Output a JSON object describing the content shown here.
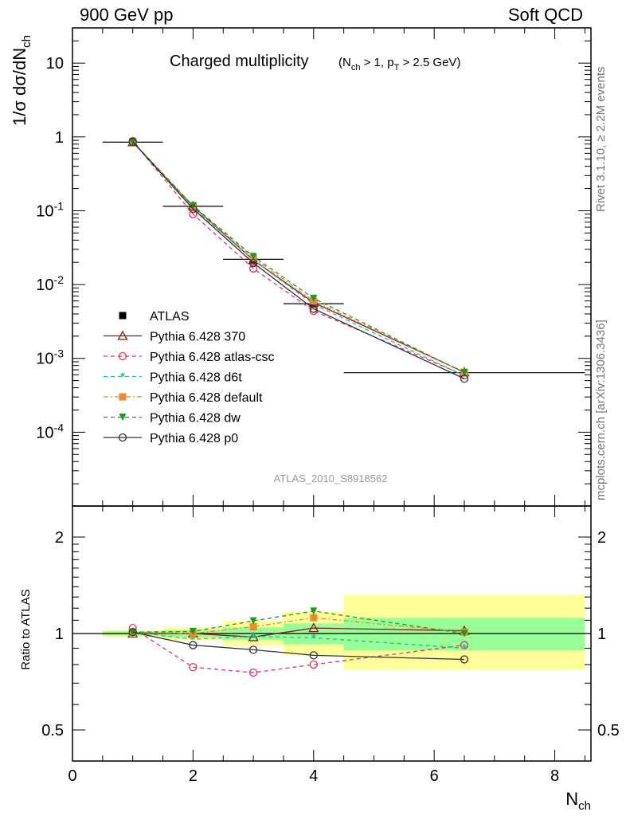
{
  "header": {
    "left": "900 GeV pp",
    "right": "Soft QCD"
  },
  "side_labels": {
    "rivet": "Rivet 3.1.10, ≥ 2.2M events",
    "mcplots": "mcplots.cern.ch [arXiv:1306.3436]"
  },
  "chart_data": [
    {
      "type": "line",
      "panel": "main",
      "title": "Charged multiplicity",
      "title_cuts": "(N_ch > 1, p_T > 2.5 GeV)",
      "ylabel": "1/σ dσ/dN_ch",
      "yscale": "log",
      "ylim": [
        1e-05,
        30
      ],
      "xlim": [
        0,
        8.6
      ],
      "watermark": "ATLAS_2010_S8918562",
      "legend_position": "left-center",
      "y_tick_labels": [
        "10",
        "1",
        "10^-1",
        "10^-2",
        "10^-3",
        "10^-4"
      ],
      "series": [
        {
          "name": "ATLAS",
          "color": "#000000",
          "marker": "square-filled",
          "x": [
            1,
            2,
            3,
            4,
            6.5
          ],
          "y": [
            0.85,
            0.115,
            0.022,
            0.0055,
            0.00064
          ],
          "bin_low": [
            0.5,
            1.5,
            2.5,
            3.5,
            4.5
          ],
          "bin_high": [
            1.5,
            2.5,
            3.5,
            4.5,
            8.5
          ]
        },
        {
          "name": "Pythia 6.428 370",
          "color": "#8b1a1a",
          "marker": "triangle-open",
          "dash": "solid",
          "x": [
            1,
            2,
            3,
            4,
            6.5
          ],
          "y": [
            0.85,
            0.115,
            0.0215,
            0.0057,
            0.00065
          ]
        },
        {
          "name": "Pythia 6.428 atlas-csc",
          "color": "#e8335a",
          "marker": "circle-open",
          "dash": "dashed",
          "x": [
            1,
            2,
            3,
            4,
            6.5
          ],
          "y": [
            0.88,
            0.09,
            0.0165,
            0.0044,
            0.00059
          ]
        },
        {
          "name": "Pythia 6.428 d6t",
          "color": "#1fbf9f",
          "marker": "star",
          "dash": "dashed",
          "x": [
            1,
            2,
            3,
            4,
            6.5
          ],
          "y": [
            0.86,
            0.11,
            0.0215,
            0.0054,
            0.00058
          ]
        },
        {
          "name": "Pythia 6.428 default",
          "color": "#f08a30",
          "marker": "square-filled",
          "dash": "dashdot",
          "x": [
            1,
            2,
            3,
            4,
            6.5
          ],
          "y": [
            0.86,
            0.115,
            0.023,
            0.006,
            0.00065
          ]
        },
        {
          "name": "Pythia 6.428 dw",
          "color": "#1a9a1a",
          "marker": "triangle-down-filled",
          "dash": "dashed",
          "x": [
            1,
            2,
            3,
            4,
            6.5
          ],
          "y": [
            0.86,
            0.117,
            0.024,
            0.0065,
            0.00064
          ]
        },
        {
          "name": "Pythia 6.428 p0",
          "color": "#333333",
          "marker": "circle-open",
          "dash": "solid",
          "x": [
            1,
            2,
            3,
            4,
            6.5
          ],
          "y": [
            0.86,
            0.106,
            0.0196,
            0.0047,
            0.00053
          ]
        }
      ]
    },
    {
      "type": "line",
      "panel": "ratio",
      "ylabel": "Ratio to ATLAS",
      "xlabel": "N_ch",
      "yscale": "log",
      "ylim": [
        0.4,
        2.5
      ],
      "xlim": [
        0,
        8.6
      ],
      "x_tick_labels": [
        "0",
        "2",
        "4",
        "6",
        "8"
      ],
      "y_tick_labels": [
        "2",
        "1",
        "0.5"
      ],
      "bands": {
        "x_low": [
          0.5,
          1.5,
          2.5,
          3.5,
          4.5
        ],
        "x_high": [
          1.5,
          2.5,
          3.5,
          4.5,
          8.5
        ],
        "green_low": [
          0.985,
          0.975,
          0.955,
          0.925,
          0.885
        ],
        "green_high": [
          1.015,
          1.025,
          1.045,
          1.075,
          1.12
        ],
        "yellow_low": [
          0.975,
          0.955,
          0.915,
          0.855,
          0.77
        ],
        "yellow_high": [
          1.025,
          1.045,
          1.095,
          1.17,
          1.32
        ]
      },
      "series": [
        {
          "name": "Pythia 6.428 370",
          "color": "#8b1a1a",
          "x": [
            1,
            2,
            3,
            4,
            6.5
          ],
          "y": [
            1.0,
            1.0,
            0.975,
            1.04,
            1.02
          ]
        },
        {
          "name": "Pythia 6.428 atlas-csc",
          "color": "#e8335a",
          "x": [
            1,
            2,
            3,
            4,
            6.5
          ],
          "y": [
            1.04,
            0.785,
            0.755,
            0.8,
            0.92
          ]
        },
        {
          "name": "Pythia 6.428 d6t",
          "color": "#1fbf9f",
          "x": [
            1,
            2,
            3,
            4,
            6.5
          ],
          "y": [
            1.01,
            0.96,
            0.98,
            0.97,
            0.9
          ]
        },
        {
          "name": "Pythia 6.428 default",
          "color": "#f08a30",
          "x": [
            1,
            2,
            3,
            4,
            6.5
          ],
          "y": [
            1.01,
            1.0,
            1.05,
            1.12,
            1.01
          ]
        },
        {
          "name": "Pythia 6.428 dw",
          "color": "#1a9a1a",
          "x": [
            1,
            2,
            3,
            4,
            6.5
          ],
          "y": [
            1.01,
            1.015,
            1.095,
            1.175,
            1.0
          ]
        },
        {
          "name": "Pythia 6.428 p0",
          "color": "#333333",
          "x": [
            1,
            2,
            3,
            4,
            6.5
          ],
          "y": [
            1.01,
            0.92,
            0.89,
            0.855,
            0.83
          ]
        }
      ]
    }
  ]
}
